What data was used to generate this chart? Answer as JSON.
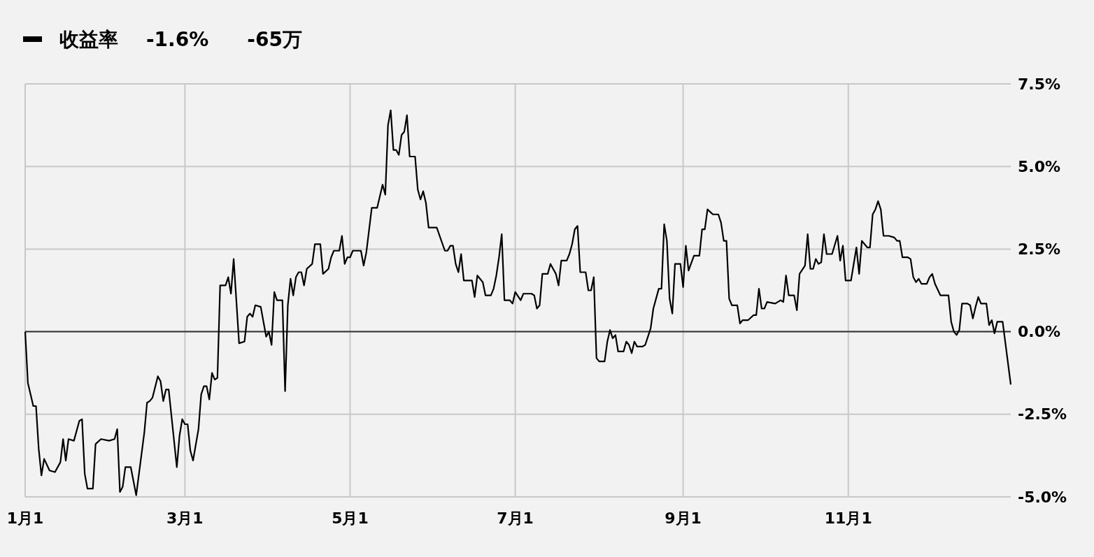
{
  "chart_data": {
    "type": "line",
    "legend": "top left",
    "grid": true,
    "annotations": [
      "-1.6%",
      "-65万"
    ],
    "xlim": [
      "--01-01",
      "--12-31"
    ],
    "xticks": [
      {
        "value": "--01-01",
        "label": "1月1"
      },
      {
        "value": "--03-01",
        "label": "3月1"
      },
      {
        "value": "--05-01",
        "label": "5月1"
      },
      {
        "value": "--07-01",
        "label": "7月1"
      },
      {
        "value": "--09-01",
        "label": "9月1"
      },
      {
        "value": "--11-01",
        "label": "11月1"
      }
    ],
    "ylim": [
      -5,
      7.5
    ],
    "yticks": [
      {
        "value": -5,
        "label": "-5.0%"
      },
      {
        "value": -2.5,
        "label": "-2.5%"
      },
      {
        "value": 0,
        "label": "0.0%"
      },
      {
        "value": 2.5,
        "label": "2.5%"
      },
      {
        "value": 5,
        "label": "5.0%"
      },
      {
        "value": 7.5,
        "label": "7.5%"
      }
    ],
    "ref_lines": [
      {
        "axis": "y",
        "value": 0,
        "label": null,
        "color": "#333333"
      }
    ],
    "x": [
      "--01-01",
      "--01-02",
      "--01-04",
      "--01-05",
      "--01-06",
      "--01-07",
      "--01-08",
      "--01-10",
      "--01-12",
      "--01-14",
      "--01-15",
      "--01-16",
      "--01-17",
      "--01-19",
      "--01-21",
      "--01-22",
      "--01-23",
      "--01-24",
      "--01-26",
      "--01-27",
      "--01-29",
      "--02-01",
      "--02-03",
      "--02-04",
      "--02-05",
      "--02-06",
      "--02-07",
      "--02-09",
      "--02-11",
      "--02-14",
      "--02-15",
      "--02-16",
      "--02-17",
      "--02-19",
      "--02-20",
      "--02-21",
      "--02-22",
      "--02-23",
      "--02-26",
      "--02-27",
      "--02-28",
      "--03-01",
      "--03-02",
      "--03-03",
      "--03-04",
      "--03-06",
      "--03-07",
      "--03-08",
      "--03-09",
      "--03-10",
      "--03-11",
      "--03-12",
      "--03-13",
      "--03-14",
      "--03-16",
      "--03-17",
      "--03-18",
      "--03-19",
      "--03-21",
      "--03-23",
      "--03-24",
      "--03-25",
      "--03-26",
      "--03-27",
      "--03-29",
      "--03-31",
      "--04-01",
      "--04-02",
      "--04-03",
      "--04-04",
      "--04-06",
      "--04-07",
      "--04-08",
      "--04-09",
      "--04-10",
      "--04-11",
      "--04-12",
      "--04-13",
      "--04-14",
      "--04-15",
      "--04-17",
      "--04-18",
      "--04-20",
      "--04-21",
      "--04-23",
      "--04-24",
      "--04-25",
      "--04-27",
      "--04-28",
      "--04-29",
      "--04-30",
      "--05-01",
      "--05-02",
      "--05-05",
      "--05-06",
      "--05-07",
      "--05-09",
      "--05-11",
      "--05-13",
      "--05-14",
      "--05-15",
      "--05-16",
      "--05-17",
      "--05-18",
      "--05-19",
      "--05-20",
      "--05-21",
      "--05-22",
      "--05-23",
      "--05-25",
      "--05-26",
      "--05-27",
      "--05-28",
      "--05-29",
      "--05-30",
      "--06-02",
      "--06-05",
      "--06-06",
      "--06-07",
      "--06-08",
      "--06-09",
      "--06-10",
      "--06-11",
      "--06-12",
      "--06-13",
      "--06-15",
      "--06-16",
      "--06-17",
      "--06-18",
      "--06-19",
      "--06-20",
      "--06-22",
      "--06-23",
      "--06-24",
      "--06-25",
      "--06-26",
      "--06-27",
      "--06-29",
      "--06-30",
      "--07-01",
      "--07-03",
      "--07-04",
      "--07-07",
      "--07-08",
      "--07-09",
      "--07-10",
      "--07-11",
      "--07-13",
      "--07-14",
      "--07-16",
      "--07-17",
      "--07-18",
      "--07-20",
      "--07-21",
      "--07-22",
      "--07-23",
      "--07-24",
      "--07-25",
      "--07-27",
      "--07-28",
      "--07-29",
      "--07-30",
      "--07-31",
      "--08-01",
      "--08-03",
      "--08-04",
      "--08-05",
      "--08-06",
      "--08-07",
      "--08-08",
      "--08-10",
      "--08-11",
      "--08-12",
      "--08-13",
      "--08-14",
      "--08-15",
      "--08-17",
      "--08-18",
      "--08-20",
      "--08-21",
      "--08-23",
      "--08-24",
      "--08-25",
      "--08-26",
      "--08-27",
      "--08-28",
      "--08-29",
      "--08-31",
      "--09-01",
      "--09-02",
      "--09-03",
      "--09-05",
      "--09-07",
      "--09-08",
      "--09-09",
      "--09-10",
      "--09-12",
      "--09-14",
      "--09-15",
      "--09-16",
      "--09-17",
      "--09-18",
      "--09-19",
      "--09-21",
      "--09-22",
      "--09-23",
      "--09-25",
      "--09-27",
      "--09-28",
      "--09-29",
      "--09-30",
      "--10-01",
      "--10-02",
      "--10-05",
      "--10-07",
      "--10-08",
      "--10-09",
      "--10-10",
      "--10-12",
      "--10-13",
      "--10-14",
      "--10-16",
      "--10-17",
      "--10-18",
      "--10-19",
      "--10-20",
      "--10-21",
      "--10-22",
      "--10-23",
      "--10-24",
      "--10-26",
      "--10-28",
      "--10-29",
      "--10-30",
      "--10-31",
      "--11-02",
      "--11-04",
      "--11-05",
      "--11-06",
      "--11-08",
      "--11-09",
      "--11-10",
      "--11-11",
      "--11-12",
      "--11-13",
      "--11-14",
      "--11-16",
      "--11-18",
      "--11-19",
      "--11-20",
      "--11-21",
      "--11-23",
      "--11-24",
      "--11-25",
      "--11-26",
      "--11-27",
      "--11-28",
      "--11-30",
      "--12-01",
      "--12-02",
      "--12-03",
      "--12-05",
      "--12-08",
      "--12-09",
      "--12-10",
      "--12-11",
      "--12-12",
      "--12-13",
      "--12-15",
      "--12-16",
      "--12-17",
      "--12-18",
      "--12-19",
      "--12-20",
      "--12-22",
      "--12-23",
      "--12-24",
      "--12-25",
      "--12-26",
      "--12-28",
      "--12-31"
    ],
    "series": [
      {
        "name": "收益率",
        "color": "#000000",
        "values": [
          0.0,
          -1.55,
          -2.25,
          -2.25,
          -3.55,
          -4.35,
          -3.85,
          -4.2,
          -4.25,
          -3.95,
          -3.25,
          -3.9,
          -3.25,
          -3.3,
          -2.7,
          -2.65,
          -4.3,
          -4.75,
          -4.75,
          -3.4,
          -3.25,
          -3.3,
          -3.25,
          -2.95,
          -4.85,
          -4.7,
          -4.1,
          -4.1,
          -4.95,
          -3.05,
          -2.15,
          -2.1,
          -2.0,
          -1.35,
          -1.5,
          -2.1,
          -1.75,
          -1.75,
          -4.1,
          -3.15,
          -2.65,
          -2.8,
          -2.8,
          -3.6,
          -3.9,
          -2.95,
          -1.9,
          -1.65,
          -1.65,
          -2.05,
          -1.25,
          -1.45,
          -1.4,
          1.4,
          1.4,
          1.65,
          1.15,
          2.2,
          -0.35,
          -0.3,
          0.45,
          0.55,
          0.45,
          0.8,
          0.75,
          -0.15,
          0.0,
          -0.4,
          1.2,
          0.95,
          0.95,
          -1.8,
          0.8,
          1.6,
          1.1,
          1.65,
          1.8,
          1.8,
          1.4,
          1.9,
          2.05,
          2.65,
          2.65,
          1.75,
          1.9,
          2.25,
          2.45,
          2.45,
          2.9,
          2.05,
          2.25,
          2.25,
          2.45,
          2.45,
          2.0,
          2.4,
          3.75,
          3.75,
          4.45,
          4.15,
          6.25,
          6.7,
          5.5,
          5.5,
          5.35,
          5.95,
          6.05,
          6.55,
          5.3,
          5.3,
          4.3,
          4.0,
          4.25,
          3.9,
          3.15,
          3.15,
          2.45,
          2.45,
          2.6,
          2.6,
          2.05,
          1.8,
          2.35,
          1.55,
          1.55,
          1.55,
          1.05,
          1.7,
          1.6,
          1.5,
          1.1,
          1.1,
          1.3,
          1.7,
          2.25,
          2.95,
          0.95,
          0.95,
          0.85,
          1.2,
          0.95,
          1.15,
          1.15,
          1.1,
          0.7,
          0.8,
          1.75,
          1.75,
          2.05,
          1.75,
          1.4,
          2.15,
          2.15,
          2.35,
          2.65,
          3.1,
          3.2,
          1.8,
          1.8,
          1.25,
          1.25,
          1.65,
          -0.8,
          -0.9,
          -0.9,
          -0.3,
          0.05,
          -0.2,
          -0.1,
          -0.6,
          -0.6,
          -0.3,
          -0.4,
          -0.65,
          -0.3,
          -0.45,
          -0.45,
          -0.4,
          0.1,
          0.7,
          1.3,
          1.3,
          3.25,
          2.75,
          1.0,
          0.55,
          2.05,
          2.05,
          1.35,
          2.6,
          1.85,
          2.3,
          2.3,
          3.1,
          3.1,
          3.7,
          3.55,
          3.55,
          3.3,
          2.75,
          2.75,
          1.0,
          0.8,
          0.8,
          0.25,
          0.35,
          0.35,
          0.5,
          0.5,
          1.3,
          0.7,
          0.7,
          0.9,
          0.85,
          0.95,
          0.9,
          1.7,
          1.1,
          1.1,
          0.65,
          1.75,
          2.0,
          2.95,
          1.9,
          1.9,
          2.2,
          2.05,
          2.1,
          2.95,
          2.35,
          2.35,
          2.9,
          2.15,
          2.6,
          1.55,
          1.55,
          2.55,
          1.75,
          2.75,
          2.55,
          2.55,
          3.55,
          3.7,
          3.95,
          3.7,
          2.9,
          2.9,
          2.85,
          2.75,
          2.75,
          2.25,
          2.25,
          2.2,
          1.65,
          1.5,
          1.6,
          1.45,
          1.45,
          1.65,
          1.75,
          1.45,
          1.1,
          1.1,
          0.3,
          0.0,
          -0.1,
          0.05,
          0.85,
          0.85,
          0.8,
          0.4,
          0.75,
          1.05,
          0.85,
          0.85,
          0.2,
          0.35,
          -0.05,
          0.3,
          0.3,
          -1.6
        ]
      }
    ]
  }
}
